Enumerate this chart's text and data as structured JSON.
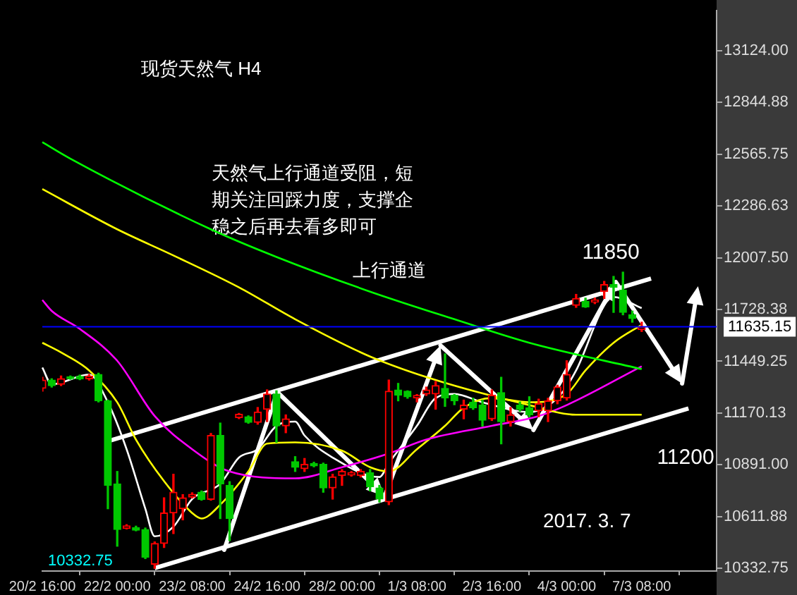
{
  "chart_data": {
    "type": "candlestick",
    "title": "现货天然气 H4",
    "annotations": [
      "天然气上行通道受阻，短期关注回踩力度，支撑企稳之后再去看多即可",
      "上行通道",
      "2017. 3. 7",
      {
        "text": "11850",
        "y": 11850
      },
      {
        "text": "11200",
        "y": 11200
      },
      "10332.75"
    ],
    "categories": [
      "20/2 16:00",
      null,
      null,
      null,
      null,
      null,
      null,
      null,
      "22/2 00:00",
      null,
      null,
      null,
      null,
      null,
      null,
      null,
      "23/2 08:00",
      null,
      null,
      null,
      null,
      null,
      null,
      null,
      "24/2 16:00",
      null,
      null,
      null,
      null,
      null,
      null,
      null,
      "28/2 00:00",
      null,
      null,
      null,
      null,
      null,
      null,
      null,
      "1/3 08:00",
      null,
      null,
      null,
      null,
      null,
      null,
      null,
      "2/3 16:00",
      null,
      null,
      null,
      null,
      null,
      null,
      null,
      "4/3 00:00",
      null,
      null,
      null,
      null,
      null,
      null,
      null,
      "7/3 08:00",
      null,
      null,
      null,
      null,
      null,
      null,
      null,
      null
    ],
    "ohlc": [
      [
        11303,
        11363,
        11288,
        11348
      ],
      [
        11348,
        11355,
        11310,
        11318
      ],
      [
        11325,
        11370,
        11318,
        11355
      ],
      [
        11366,
        11370,
        11352,
        11356
      ],
      [
        11368,
        11375,
        11350,
        11355
      ],
      [
        11355,
        11378,
        11348,
        11370
      ],
      [
        11378,
        11385,
        11230,
        11236
      ],
      [
        11236,
        11240,
        10654,
        10781
      ],
      [
        10788,
        10855,
        10452,
        10542
      ],
      [
        10548,
        10568,
        10545,
        10562
      ],
      [
        10552,
        10560,
        10535,
        10538
      ],
      [
        10542,
        10550,
        10385,
        10393
      ],
      [
        10355,
        10475,
        10332.75,
        10467
      ],
      [
        10467,
        10713,
        10445,
        10631
      ],
      [
        10631,
        10840,
        10520,
        10743
      ],
      [
        10654,
        10730,
        10594,
        10713
      ],
      [
        10717,
        10740,
        10712,
        10732
      ],
      [
        10743,
        10750,
        10700,
        10705
      ],
      [
        10705,
        11060,
        10700,
        11049
      ],
      [
        11049,
        11116,
        10601,
        10788
      ],
      [
        10780,
        10800,
        10482,
        10601
      ],
      [
        11146,
        11168,
        11140,
        11163
      ],
      [
        11150,
        11155,
        11115,
        11120
      ],
      [
        11120,
        11200,
        11110,
        11176
      ],
      [
        11190,
        11295,
        11124,
        11273
      ],
      [
        11273,
        11290,
        11012,
        11101
      ],
      [
        11101,
        11160,
        11064,
        11139
      ],
      [
        10908,
        10935,
        10855,
        10878
      ],
      [
        10870,
        10925,
        10855,
        10893
      ],
      [
        10897,
        10905,
        10880,
        10885
      ],
      [
        10893,
        10900,
        10743,
        10766
      ],
      [
        10766,
        10840,
        10706,
        10826
      ],
      [
        10833,
        10865,
        10780,
        10855
      ],
      [
        10836,
        10855,
        10830,
        10848
      ],
      [
        10833,
        10865,
        10825,
        10855
      ],
      [
        10848,
        10865,
        10750,
        10773
      ],
      [
        10766,
        10780,
        10690,
        10706
      ],
      [
        10691,
        11348,
        10676,
        11288
      ],
      [
        11295,
        11330,
        11236,
        11266
      ],
      [
        11288,
        11290,
        11250,
        11258
      ],
      [
        11252,
        11270,
        11230,
        11265
      ],
      [
        11273,
        11310,
        11265,
        11295
      ],
      [
        11273,
        11340,
        11191,
        11318
      ],
      [
        11303,
        11489,
        11206,
        11251
      ],
      [
        11266,
        11270,
        11215,
        11236
      ],
      [
        11191,
        11240,
        11139,
        11213
      ],
      [
        11229,
        11250,
        11190,
        11199
      ],
      [
        11213,
        11240,
        11100,
        11131
      ],
      [
        11139,
        11295,
        11130,
        11266
      ],
      [
        11280,
        11363,
        11004,
        11124
      ],
      [
        11124,
        11200,
        11100,
        11161
      ],
      [
        11213,
        11230,
        11180,
        11191
      ],
      [
        11199,
        11258,
        11150,
        11161
      ],
      [
        11183,
        11245,
        11150,
        11220
      ],
      [
        11183,
        11250,
        11124,
        11236
      ],
      [
        11236,
        11320,
        11220,
        11311
      ],
      [
        11251,
        11452,
        11240,
        11378
      ],
      [
        11751,
        11810,
        11740,
        11788
      ],
      [
        11773,
        11790,
        11740,
        11743
      ],
      [
        11768,
        11790,
        11760,
        11780
      ],
      [
        11826,
        11880,
        11788,
        11863
      ],
      [
        11863,
        11907,
        11713,
        11848
      ],
      [
        11833,
        11930,
        11700,
        11713
      ],
      [
        11700,
        11720,
        11660,
        11680
      ],
      [
        11620,
        11660,
        11610,
        11635.15
      ],
      null,
      null,
      null,
      null,
      null,
      null,
      null,
      null
    ],
    "colors": [
      "#ff0000",
      "#00c800",
      "#ff0000",
      "#00c800",
      "#00c800",
      "#ff0000",
      "#00c800",
      "#00c800",
      "#00c800",
      "#ff0000",
      "#00c800",
      "#00c800",
      "#ff0000",
      "#ff0000",
      "#ff0000",
      "#ff0000",
      "#ff0000",
      "#00c800",
      "#ff0000",
      "#00c800",
      "#00c800",
      "#ff0000",
      "#00c800",
      "#ff0000",
      "#ff0000",
      "#00c800",
      "#ff0000",
      "#00c800",
      "#ff0000",
      "#00c800",
      "#00c800",
      "#ff0000",
      "#ff0000",
      "#ff0000",
      "#ff0000",
      "#00c800",
      "#00c800",
      "#ff0000",
      "#00c800",
      "#00c800",
      "#ff0000",
      "#ff0000",
      "#ff0000",
      "#00c800",
      "#00c800",
      "#ff0000",
      "#00c800",
      "#00c800",
      "#ff0000",
      "#00c800",
      "#ff0000",
      "#00c800",
      "#00c800",
      "#ff0000",
      "#ff0000",
      "#ff0000",
      "#ff0000",
      "#ff0000",
      "#00c800",
      "#ff0000",
      "#ff0000",
      "#00c800",
      "#00c800",
      "#00c800",
      "#ff0000",
      null,
      null,
      null,
      null,
      null,
      null,
      null,
      null
    ],
    "series": [
      {
        "type": "line",
        "color": "#00ff00",
        "values": [
          12631,
          null,
          null,
          12542,
          null,
          null,
          null,
          null,
          null,
          null,
          null,
          null,
          null,
          null,
          null,
          null,
          null,
          null,
          12161,
          null,
          null,
          null,
          null,
          null,
          null,
          12012,
          null,
          null,
          null,
          null,
          null,
          null,
          null,
          null,
          null,
          11825,
          null,
          null,
          null,
          null,
          null,
          null,
          null,
          null,
          11676,
          null,
          null,
          null,
          null,
          null,
          null,
          null,
          11549,
          null,
          null,
          null,
          null,
          null,
          null,
          null,
          null,
          null,
          null,
          null,
          11407,
          null,
          null,
          null,
          null,
          null,
          null,
          null,
          null
        ]
      },
      {
        "type": "line",
        "color": "#ffff00",
        "values": [
          12378,
          null,
          null,
          null,
          null,
          null,
          null,
          null,
          12161,
          null,
          null,
          null,
          null,
          null,
          12020,
          null,
          null,
          null,
          null,
          null,
          null,
          11848,
          null,
          null,
          null,
          null,
          null,
          11676,
          null,
          null,
          null,
          null,
          null,
          null,
          null,
          11475,
          null,
          null,
          null,
          null,
          null,
          null,
          11348,
          null,
          null,
          null,
          null,
          null,
          null,
          null,
          null,
          null,
          11213,
          null,
          null,
          null,
          null,
          11161,
          null,
          null,
          null,
          null,
          null,
          null,
          11161,
          null,
          null,
          null,
          null,
          null,
          null,
          null,
          null
        ]
      },
      {
        "type": "line",
        "color": "#ff00ff",
        "values": [
          11780,
          11721,
          null,
          null,
          11624,
          null,
          null,
          null,
          11452,
          null,
          null,
          null,
          11154,
          null,
          null,
          null,
          10975,
          null,
          null,
          null,
          10855,
          null,
          null,
          null,
          null,
          null,
          null,
          10818,
          null,
          null,
          null,
          null,
          10878,
          null,
          null,
          null,
          null,
          10952,
          null,
          null,
          null,
          11027,
          null,
          null,
          null,
          null,
          null,
          null,
          11101,
          null,
          null,
          null,
          null,
          11154,
          null,
          null,
          11213,
          null,
          null,
          null,
          null,
          null,
          null,
          null,
          11422,
          null,
          null,
          null,
          null,
          null,
          null,
          null,
          null
        ]
      },
      {
        "type": "line",
        "color": "#ffff00",
        "values": [
          11549,
          null,
          11497,
          null,
          null,
          11400,
          null,
          null,
          11228,
          null,
          11027,
          null,
          null,
          10803,
          null,
          null,
          10631,
          10601,
          null,
          10676,
          null,
          null,
          10855,
          null,
          11005,
          null,
          null,
          11012,
          null,
          null,
          null,
          null,
          10967,
          null,
          null,
          10878,
          null,
          10855,
          null,
          null,
          10975,
          null,
          null,
          11101,
          null,
          11199,
          null,
          null,
          11251,
          null,
          null,
          null,
          11228,
          null,
          null,
          null,
          11273,
          null,
          11400,
          null,
          null,
          11549,
          null,
          null,
          11646,
          null,
          null,
          null,
          null,
          null,
          null,
          null,
          null
        ]
      },
      {
        "type": "line",
        "color": "#ffffff",
        "values": [
          11415,
          11325,
          null,
          null,
          null,
          11378,
          null,
          11228,
          null,
          10975,
          null,
          10654,
          10505,
          null,
          10557,
          null,
          10706,
          null,
          null,
          10788,
          null,
          10930,
          null,
          10975,
          null,
          11101,
          null,
          11124,
          11049,
          null,
          null,
          10930,
          null,
          null,
          null,
          null,
          10825,
          10900,
          null,
          null,
          11101,
          null,
          11251,
          null,
          11273,
          null,
          null,
          11228,
          null,
          null,
          null,
          null,
          11176,
          null,
          null,
          11251,
          null,
          11400,
          null,
          null,
          11751,
          11796,
          null,
          null,
          11736,
          null,
          null,
          null,
          null,
          null,
          null,
          null,
          null
        ]
      },
      {
        "type": "line",
        "color": "#ffffff",
        "values": [
          null,
          null,
          null,
          null,
          null,
          null,
          null,
          11018,
          null,
          null,
          null,
          null,
          null,
          null,
          null,
          null,
          null,
          null,
          null,
          null,
          null,
          null,
          null,
          null,
          null,
          null,
          null,
          null,
          null,
          null,
          null,
          null,
          null,
          null,
          null,
          null,
          null,
          null,
          null,
          null,
          null,
          null,
          null,
          null,
          null,
          null,
          null,
          null,
          null,
          null,
          null,
          null,
          null,
          null,
          null,
          null,
          null,
          null,
          null,
          null,
          null,
          null,
          null,
          null,
          null,
          11895,
          null,
          null,
          null,
          null,
          null,
          null,
          null
        ]
      },
      {
        "type": "line",
        "color": "#ffffff",
        "values": [
          null,
          null,
          null,
          null,
          null,
          null,
          null,
          null,
          null,
          null,
          null,
          null,
          10334,
          null,
          null,
          null,
          null,
          null,
          null,
          null,
          null,
          null,
          null,
          null,
          null,
          null,
          null,
          null,
          null,
          null,
          null,
          null,
          null,
          null,
          null,
          null,
          null,
          null,
          null,
          null,
          null,
          null,
          null,
          null,
          null,
          null,
          null,
          null,
          null,
          null,
          null,
          null,
          null,
          null,
          null,
          null,
          null,
          null,
          null,
          null,
          null,
          null,
          null,
          null,
          null,
          null,
          null,
          null,
          null,
          11195,
          null,
          null,
          null
        ]
      }
    ],
    "ylim": [
      10318,
      13340
    ],
    "yticks": [
      {
        "value": 13124,
        "label": "13124.00"
      },
      12844.88,
      12565.75,
      12286.63,
      {
        "value": 12007.5,
        "label": "12007.50"
      },
      11728.38,
      11449.25,
      11170.13,
      {
        "value": 10891,
        "label": "10891.00"
      },
      10611.88,
      10332.75
    ],
    "ref_lines": [
      {
        "axis": "y",
        "value": 11635.15,
        "label": "11635.15",
        "color": "#0000ff"
      }
    ]
  }
}
